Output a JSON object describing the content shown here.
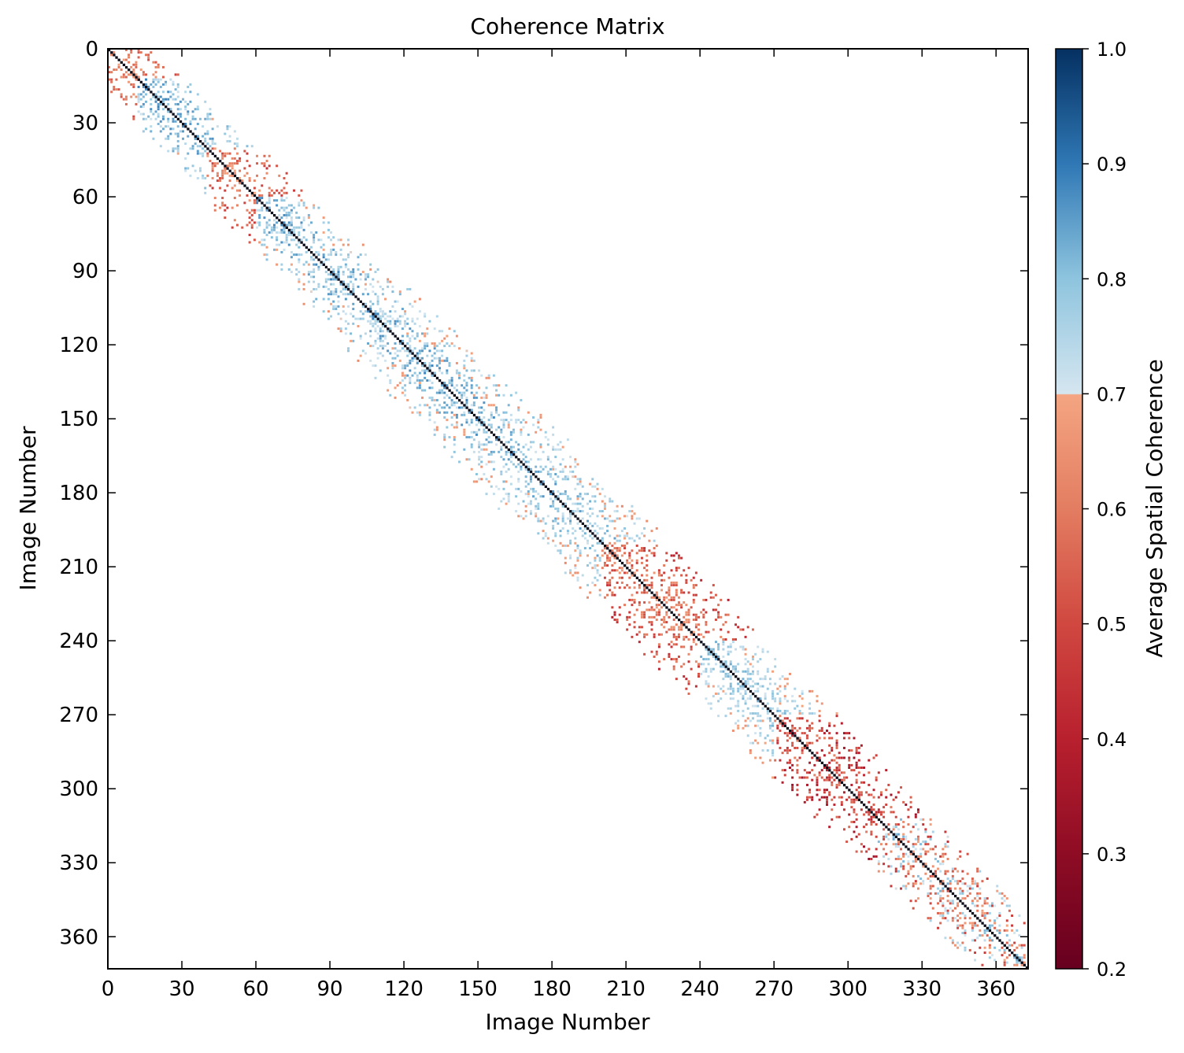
{
  "chart_data": {
    "type": "heatmap",
    "title": "Coherence Matrix",
    "xlabel": "Image Number",
    "ylabel": "Image Number",
    "xlim": [
      0,
      373
    ],
    "ylim": [
      373,
      0
    ],
    "x_ticks": [
      "0",
      "30",
      "60",
      "90",
      "120",
      "150",
      "180",
      "210",
      "240",
      "270",
      "300",
      "330",
      "360"
    ],
    "y_ticks": [
      "0",
      "30",
      "60",
      "90",
      "120",
      "150",
      "180",
      "210",
      "240",
      "270",
      "300",
      "330",
      "360"
    ],
    "matrix_size": 373,
    "structure": "banded, near-symmetric matrix; diagonal values equal 1.0; off-diagonal sparse cells within a band that widens from ~15 to ~25 images around the diagonal",
    "band_regions": [
      {
        "from": 0,
        "to": 12,
        "typical_coherence": "0.55-0.7"
      },
      {
        "from": 12,
        "to": 40,
        "typical_coherence": "0.75-0.9"
      },
      {
        "from": 40,
        "to": 60,
        "typical_coherence": "0.5-0.7"
      },
      {
        "from": 60,
        "to": 150,
        "typical_coherence": "0.72-0.9"
      },
      {
        "from": 150,
        "to": 200,
        "typical_coherence": "0.72-0.88"
      },
      {
        "from": 200,
        "to": 240,
        "typical_coherence": "0.5-0.7"
      },
      {
        "from": 240,
        "to": 270,
        "typical_coherence": "0.72-0.85"
      },
      {
        "from": 270,
        "to": 312,
        "typical_coherence": "0.4-0.65"
      },
      {
        "from": 312,
        "to": 373,
        "typical_coherence": "0.5-0.85"
      }
    ],
    "colorbar": {
      "label": "Average Spatial Coherence",
      "range": [
        0.2,
        1.0
      ],
      "ticks": [
        "0.2",
        "0.3",
        "0.4",
        "0.5",
        "0.6",
        "0.7",
        "0.8",
        "0.9",
        "1.0"
      ],
      "colormap": "RdBu (red below 0.7, blue at or above 0.7)",
      "threshold": 0.7
    },
    "grid": false,
    "colors": {
      "stops": [
        {
          "v": 0.2,
          "c": "#67001f"
        },
        {
          "v": 0.3,
          "c": "#8e0c24"
        },
        {
          "v": 0.4,
          "c": "#b8202e"
        },
        {
          "v": 0.5,
          "c": "#d04840"
        },
        {
          "v": 0.6,
          "c": "#e37d61"
        },
        {
          "v": 0.699,
          "c": "#f4a582"
        },
        {
          "v": 0.7,
          "c": "#d5e6f0"
        },
        {
          "v": 0.8,
          "c": "#8ec4de"
        },
        {
          "v": 0.9,
          "c": "#2f78b5"
        },
        {
          "v": 1.0,
          "c": "#053061"
        }
      ]
    }
  }
}
